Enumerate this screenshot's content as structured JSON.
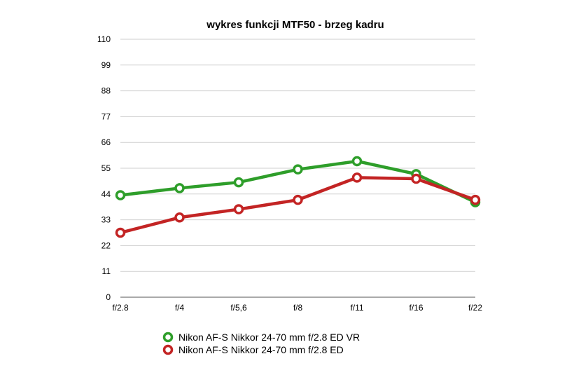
{
  "chart_data": {
    "type": "line",
    "title": "wykres funkcji MTF50 - brzeg kadru",
    "xlabel": "",
    "ylabel": "",
    "categories": [
      "f/2.8",
      "f/4",
      "f/5,6",
      "f/8",
      "f/11",
      "f/16",
      "f/22"
    ],
    "ylim": [
      0,
      110
    ],
    "yticks": [
      "0",
      "11",
      "22",
      "33",
      "44",
      "55",
      "66",
      "77",
      "88",
      "99",
      "110"
    ],
    "grid": true,
    "legend_position": "bottom",
    "series": [
      {
        "name": "Nikon AF-S Nikkor 24-70 mm f/2.8 ED VR",
        "color": "#2e9e2a",
        "values": [
          43.5,
          46.5,
          49,
          54.5,
          58,
          52.5,
          40.5
        ]
      },
      {
        "name": "Nikon AF-S Nikkor 24-70 mm f/2.8 ED",
        "color": "#c32424",
        "values": [
          27.5,
          34,
          37.5,
          41.5,
          51,
          50.5,
          41.5
        ]
      }
    ]
  }
}
